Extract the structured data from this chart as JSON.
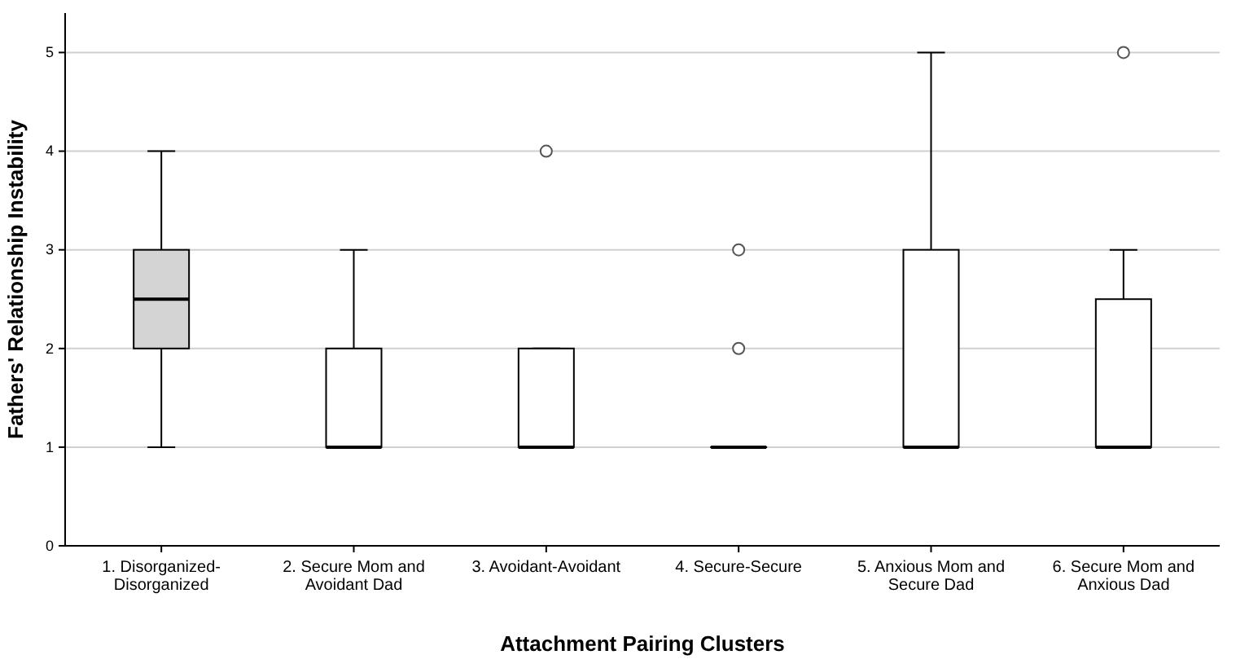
{
  "chart_data": {
    "type": "box",
    "xlabel": "Attachment Pairing Clusters",
    "ylabel": "Fathers' Relationship Instability",
    "categories": [
      "1. Disorganized-Disorganized",
      "2. Secure Mom and Avoidant Dad",
      "3. Avoidant-Avoidant",
      "4. Secure-Secure",
      "5. Anxious Mom and Secure Dad",
      "6. Secure Mom and Anxious Dad"
    ],
    "colors": [
      "#d4d4d4",
      "#ffffff",
      "#ffffff",
      "#ffffff",
      "#ffffff",
      "#ffffff"
    ],
    "boxes": [
      {
        "low": 1,
        "q1": 2,
        "median": 2.5,
        "q3": 3,
        "high": 4
      },
      {
        "low": 1,
        "q1": 1,
        "median": 1,
        "q3": 2,
        "high": 3
      },
      {
        "low": 1,
        "q1": 1,
        "median": 1,
        "q3": 2,
        "high": 2,
        "outliers": [
          4
        ]
      },
      {
        "low": 1,
        "q1": 1,
        "median": 1,
        "q3": 1,
        "high": 1,
        "outliers": [
          2,
          3
        ]
      },
      {
        "low": 1,
        "q1": 1,
        "median": 1,
        "q3": 3,
        "high": 5
      },
      {
        "low": 1,
        "q1": 1,
        "median": 1,
        "q3": 2.5,
        "high": 3,
        "outliers": [
          5
        ]
      }
    ],
    "ylim": [
      0,
      5.4
    ],
    "yticks": [
      0,
      1,
      2,
      3,
      4,
      5
    ],
    "grid": "y"
  }
}
